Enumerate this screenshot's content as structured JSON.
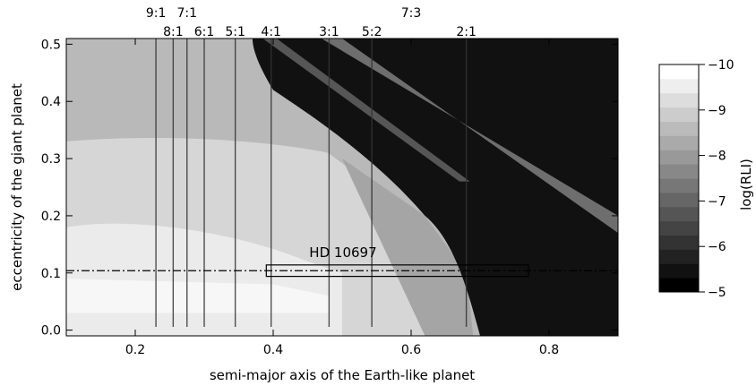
{
  "chart_data": {
    "type": "heatmap",
    "title": "",
    "xlabel": "semi-major axis of the Earth-like planet",
    "ylabel": "eccentricity of the giant planet",
    "xlim": [
      0.1,
      0.9
    ],
    "ylim": [
      -0.01,
      0.51
    ],
    "x_ticks": [
      {
        "value": 0.2,
        "label": "0.2"
      },
      {
        "value": 0.4,
        "label": "0.4"
      },
      {
        "value": 0.6,
        "label": "0.6"
      },
      {
        "value": 0.8,
        "label": "0.8"
      }
    ],
    "y_ticks": [
      {
        "value": 0.0,
        "label": "0.0"
      },
      {
        "value": 0.1,
        "label": "0.1"
      },
      {
        "value": 0.2,
        "label": "0.2"
      },
      {
        "value": 0.3,
        "label": "0.3"
      },
      {
        "value": 0.4,
        "label": "0.4"
      },
      {
        "value": 0.5,
        "label": "0.5"
      }
    ],
    "colorbar": {
      "label": "log(RLI)",
      "range": [
        -5,
        -10
      ],
      "ticks": [
        {
          "value": -10,
          "label": "−10"
        },
        {
          "value": -9,
          "label": "−9"
        },
        {
          "value": -8,
          "label": "−8"
        },
        {
          "value": -7,
          "label": "−7"
        },
        {
          "value": -6,
          "label": "−6"
        },
        {
          "value": -5,
          "label": "−5"
        }
      ],
      "levels": 16
    },
    "resonances": [
      {
        "label": "9:1",
        "a": 0.23,
        "row": 1
      },
      {
        "label": "7:1",
        "a": 0.275,
        "row": 1
      },
      {
        "label": "7:3",
        "a": 0.6,
        "row": 1
      },
      {
        "label": "8:1",
        "a": 0.255,
        "row": 2
      },
      {
        "label": "6:1",
        "a": 0.3,
        "row": 2
      },
      {
        "label": "5:1",
        "a": 0.345,
        "row": 2
      },
      {
        "label": "4:1",
        "a": 0.397,
        "row": 2
      },
      {
        "label": "3:1",
        "a": 0.481,
        "row": 2
      },
      {
        "label": "5:2",
        "a": 0.543,
        "row": 2
      },
      {
        "label": "2:1",
        "a": 0.68,
        "row": 2
      }
    ],
    "reference_line": {
      "e": 0.104,
      "style": "dash-dot"
    },
    "annotation": {
      "text": "HD 10697",
      "box": {
        "a_min": 0.39,
        "a_max": 0.77,
        "e_min": 0.094,
        "e_max": 0.114
      }
    }
  }
}
